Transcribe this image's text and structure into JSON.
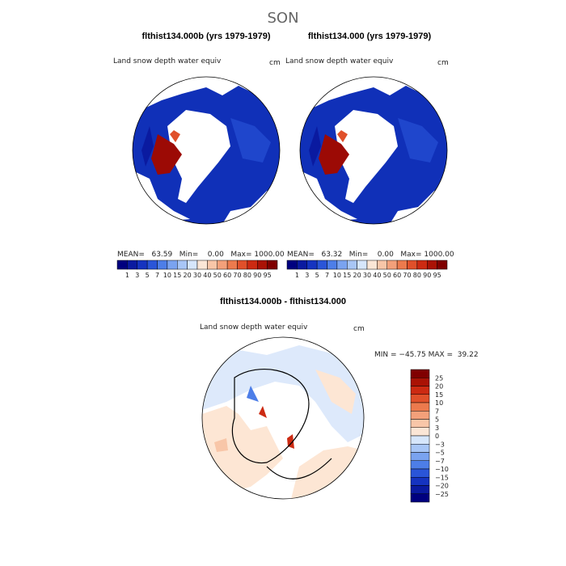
{
  "title": "SON",
  "panels": [
    {
      "title": "flthist134.000b (yrs 1979-1979)",
      "subtitle": "Land snow depth water equiv",
      "units": "cm",
      "stats": "MEAN=   63.59   Min=    0.00   Max= 1000.00"
    },
    {
      "title": "flthist134.000 (yrs 1979-1979)",
      "subtitle": "Land snow depth water equiv",
      "units": "cm",
      "stats": "MEAN=   63.32   Min=    0.00   Max= 1000.00"
    }
  ],
  "colorbar": {
    "labels": [
      "1",
      "3",
      "5",
      "7",
      "10",
      "15",
      "20",
      "30",
      "40",
      "50",
      "60",
      "70",
      "80",
      "90",
      "95"
    ],
    "colors": [
      "#00007f",
      "#0a1aa0",
      "#1533c0",
      "#2a55d8",
      "#4d7ee8",
      "#7aa3f0",
      "#a8c6f6",
      "#d6e6fb",
      "#fbe6d6",
      "#f8c6a8",
      "#f3a07a",
      "#ec7a4d",
      "#e0502a",
      "#cc2a12",
      "#aa1205",
      "#800000"
    ]
  },
  "difference": {
    "title": "flthist134.000b - flthist134.000",
    "subtitle": "Land snow depth water equiv",
    "units": "cm",
    "stats": "MIN = −45.75 MAX =  39.22",
    "colorbar": {
      "labels": [
        "25",
        "20",
        "15",
        "10",
        "7",
        "5",
        "3",
        "0",
        "−3",
        "−5",
        "−7",
        "−10",
        "−15",
        "−20",
        "−25"
      ],
      "colors": [
        "#800000",
        "#aa1205",
        "#cc2a12",
        "#e0502a",
        "#ec7a4d",
        "#f3a07a",
        "#f8c6a8",
        "#fbe6d6",
        "#d6e6fb",
        "#a8c6f6",
        "#7aa3f0",
        "#4d7ee8",
        "#2a55d8",
        "#1533c0",
        "#0a1aa0",
        "#00007f"
      ]
    }
  }
}
